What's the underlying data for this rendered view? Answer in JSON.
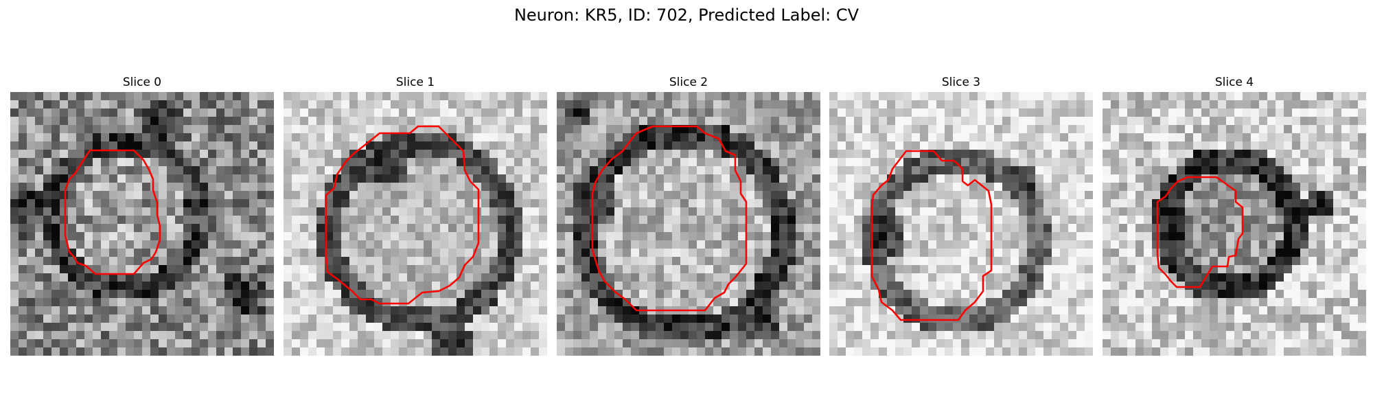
{
  "figure": {
    "title": "Neuron: KR5, ID: 702, Predicted Label: CV"
  },
  "panels": [
    {
      "title": "Slice 0"
    },
    {
      "title": "Slice 1"
    },
    {
      "title": "Slice 2"
    },
    {
      "title": "Slice 3"
    },
    {
      "title": "Slice 4"
    }
  ],
  "colors": {
    "contour": "#ff0000",
    "background": "#ffffff"
  }
}
